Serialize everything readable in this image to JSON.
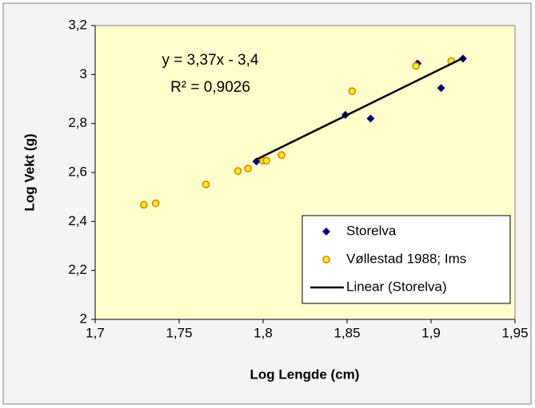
{
  "chart_data": {
    "type": "scatter",
    "xlabel": "Log Lengde (cm)",
    "ylabel": "Log Vekt (g)",
    "xlim": [
      1.7,
      1.95
    ],
    "xticks": [
      {
        "value": 1.7,
        "label": "1,7"
      },
      {
        "value": 1.75,
        "label": "1,75"
      },
      {
        "value": 1.8,
        "label": "1,8"
      },
      {
        "value": 1.85,
        "label": "1,85"
      },
      {
        "value": 1.9,
        "label": "1,9"
      },
      {
        "value": 1.95,
        "label": "1,95"
      }
    ],
    "ylim": [
      2,
      3.2
    ],
    "yticks": [
      2,
      {
        "value": 2.2,
        "label": "2,2"
      },
      {
        "value": 2.4,
        "label": "2,4"
      },
      {
        "value": 2.6,
        "label": "2,6"
      },
      {
        "value": 2.8,
        "label": "2,8"
      },
      3,
      {
        "value": 3.2,
        "label": "3,2"
      }
    ],
    "legend": "lower right",
    "plot_background": "#ffffcc",
    "series": [
      {
        "name": "Storelva",
        "marker": "diamond",
        "color": "#000080",
        "x": [
          1.796,
          1.849,
          1.864,
          1.892,
          1.906,
          1.919
        ],
        "values": [
          2.645,
          2.835,
          2.82,
          3.045,
          2.945,
          3.065
        ]
      },
      {
        "name": "Vøllestad 1988; Ims",
        "marker": "circle",
        "color": "#ffff00",
        "edgecolor": "#ff6600",
        "x": [
          1.729,
          1.736,
          1.766,
          1.785,
          1.791,
          1.8,
          1.802,
          1.811,
          1.853,
          1.891,
          1.912
        ],
        "values": [
          2.468,
          2.474,
          2.551,
          2.606,
          2.616,
          2.648,
          2.648,
          2.671,
          2.932,
          3.035,
          3.055
        ]
      },
      {
        "name": "Linear (Storelva)",
        "marker": "line",
        "color": "#000000",
        "x": [
          1.796,
          1.919
        ],
        "values": [
          2.653,
          3.067
        ]
      }
    ],
    "annotations": [
      "y = 3,37x - 3,4",
      "R² = 0,9026"
    ]
  }
}
